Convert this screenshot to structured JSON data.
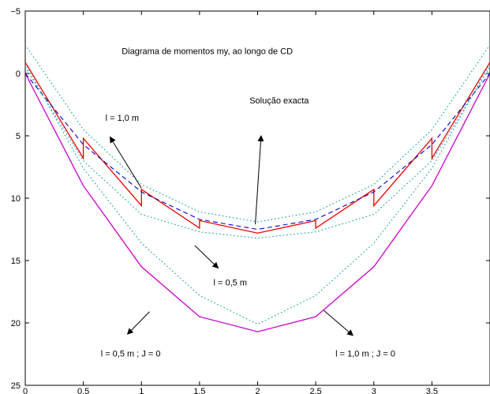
{
  "chart_data": {
    "type": "line",
    "title": "Diagrama de momentos my, ao longo de CD",
    "xlabel": "",
    "ylabel": "",
    "xlim": [
      0,
      4
    ],
    "ylim": [
      -5,
      25
    ],
    "y_reversed": true,
    "grid": false,
    "x_ticks": [
      0,
      0.5,
      1,
      1.5,
      2,
      2.5,
      3,
      3.5
    ],
    "x_tick_labels": [
      "0",
      "0.5",
      "1",
      "1.5",
      "2",
      "2.5",
      "3",
      "3.5"
    ],
    "y_ticks": [
      -5,
      0,
      5,
      10,
      15,
      20,
      25
    ],
    "y_tick_labels": [
      "−5",
      "0",
      "5",
      "10",
      "15",
      "20",
      "25"
    ],
    "series": [
      {
        "name": "",
        "color": "#cc00cc",
        "style": "solid",
        "x": [
          0,
          0.5,
          1,
          1.5,
          2,
          2.5,
          3,
          3.5,
          4
        ],
        "y": [
          0,
          9.0,
          15.5,
          19.5,
          20.7,
          19.5,
          15.5,
          9.0,
          0
        ]
      },
      {
        "name": "",
        "color": "#ee0000",
        "style": "solid",
        "x": [
          0,
          0.5,
          0.5,
          1,
          1,
          1.5,
          1.5,
          2,
          2.5,
          2.5,
          3,
          3,
          3.5,
          3.5,
          4
        ],
        "y": [
          -0.9,
          6.8,
          5.2,
          10.6,
          9.3,
          12.4,
          11.8,
          12.8,
          11.8,
          12.4,
          9.3,
          10.6,
          5.2,
          6.8,
          -0.9
        ]
      },
      {
        "name": "",
        "color": "#0000cc",
        "style": "dashed",
        "x": [
          0,
          0.5,
          1,
          1.5,
          2,
          2.5,
          3,
          3.5,
          4
        ],
        "y": [
          0,
          5.7,
          9.5,
          11.7,
          12.5,
          11.7,
          9.5,
          5.7,
          0
        ]
      },
      {
        "name": "",
        "color": "#009999",
        "style": "dotted",
        "x": [
          0,
          0.5,
          1,
          1.5,
          2,
          2.5,
          3,
          3.5,
          4
        ],
        "y": [
          -2.3,
          4.5,
          8.9,
          11.1,
          11.9,
          11.1,
          8.9,
          4.5,
          -2.3
        ]
      },
      {
        "name": "",
        "color": "#009999",
        "style": "dotted",
        "x": [
          0,
          0.5,
          1,
          1.5,
          2,
          2.5,
          3,
          3.5,
          4
        ],
        "y": [
          -0.5,
          7.0,
          11.3,
          12.7,
          13.2,
          12.7,
          11.3,
          7.0,
          -0.5
        ]
      },
      {
        "name": "",
        "color": "#009999",
        "style": "dotted",
        "x": [
          0,
          0.5,
          1,
          1.5,
          2,
          2.5,
          3,
          3.5,
          4
        ],
        "y": [
          -0.8,
          7.6,
          13.6,
          17.8,
          20.1,
          17.8,
          13.6,
          7.6,
          -0.8
        ]
      }
    ],
    "annotations": [
      {
        "text": "Diagrama de momentos my, ao longo de CD",
        "x": 0.83,
        "y": -1.55
      },
      {
        "text": "Solução exacta",
        "x": 1.93,
        "y": 2.4
      },
      {
        "text": "l = 1,0 m",
        "x": 0.69,
        "y": 3.8
      },
      {
        "text": "l = 0,5 m",
        "x": 1.62,
        "y": 17.0
      },
      {
        "text": "l = 0,5 m ; J = 0",
        "x": 0.65,
        "y": 22.7
      },
      {
        "text": "l = 1,0 m ; J = 0",
        "x": 2.67,
        "y": 22.7
      }
    ],
    "arrows": [
      {
        "from": [
          1.0,
          9.2
        ],
        "to": [
          0.73,
          5.1
        ]
      },
      {
        "from": [
          1.98,
          12.1
        ],
        "to": [
          2.03,
          5.0
        ]
      },
      {
        "from": [
          1.46,
          13.8
        ],
        "to": [
          1.66,
          15.6
        ]
      },
      {
        "from": [
          1.07,
          19.1
        ],
        "to": [
          0.88,
          20.9
        ]
      },
      {
        "from": [
          2.57,
          19.0
        ],
        "to": [
          2.82,
          21.0
        ]
      }
    ]
  }
}
